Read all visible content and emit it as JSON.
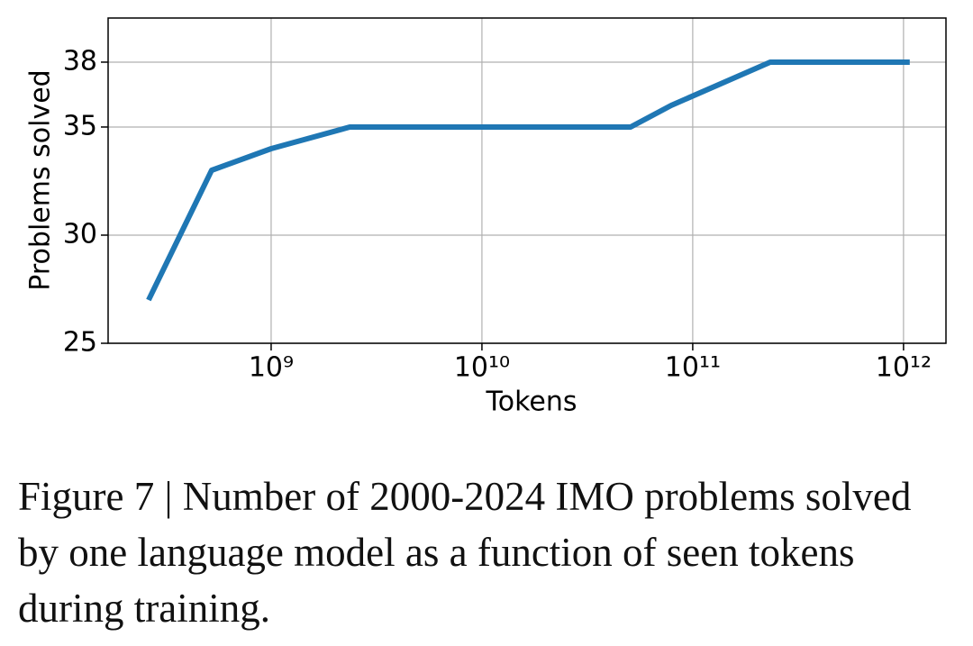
{
  "chart_data": {
    "type": "line",
    "x": [
      262000000,
      522000000,
      1000000000,
      2360000000,
      50700000000,
      79000000000,
      233000000000,
      1070000000000
    ],
    "series": [
      {
        "name": "Problems solved",
        "color": "#1f77b4",
        "values": [
          27,
          33,
          34,
          35,
          35,
          36,
          38,
          38
        ]
      }
    ],
    "xlabel": "Tokens",
    "ylabel": "Problems solved",
    "xscale": "log",
    "xlim": [
      168500000,
      1590000000000
    ],
    "xticks": [
      {
        "value": 1000000000,
        "label": "10⁹"
      },
      {
        "value": 10000000000,
        "label": "10¹⁰"
      },
      {
        "value": 100000000000,
        "label": "10¹¹"
      },
      {
        "value": 1000000000000,
        "label": "10¹²"
      }
    ],
    "ylim": [
      25,
      40.04
    ],
    "yticks": [
      25,
      30,
      35,
      38
    ],
    "grid": true
  },
  "caption": "Figure 7 | Number of 2000-2024 IMO problems solved by one language model as a function of seen tokens during training."
}
